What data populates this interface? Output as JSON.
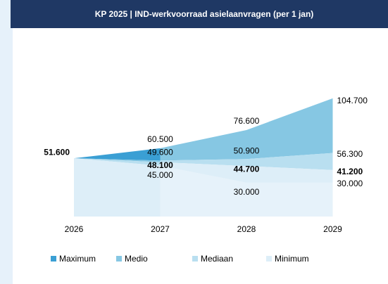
{
  "chart_data": {
    "type": "fan-area",
    "title": "KP 2025 | IND-werkvoorraad asielaanvragen (per 1 jan)",
    "categories": [
      "2026",
      "2027",
      "2028",
      "2029"
    ],
    "series": [
      {
        "name": "Maximum",
        "color": "#3a9fd4",
        "values": [
          51600,
          60500,
          76600,
          104700
        ],
        "value_labels": [
          "51.600",
          "60.500",
          "76.600",
          "104.700"
        ]
      },
      {
        "name": "Medio",
        "color": "#86c7e3",
        "values": [
          51600,
          49600,
          50900,
          56300
        ],
        "value_labels": [
          null,
          "49.600",
          "50.900",
          "56.300"
        ]
      },
      {
        "name": "Mediaan",
        "color": "#b9dff0",
        "values": [
          51600,
          48100,
          44700,
          41200
        ],
        "value_labels": [
          null,
          "48.100",
          "44.700",
          "41.200"
        ],
        "bold_labels": true
      },
      {
        "name": "Minimum",
        "color": "#ddeef8",
        "values": [
          51600,
          45000,
          30000,
          30000
        ],
        "value_labels": [
          null,
          "45.000",
          "30.000",
          "30.000"
        ]
      }
    ],
    "legend": "bottom"
  }
}
